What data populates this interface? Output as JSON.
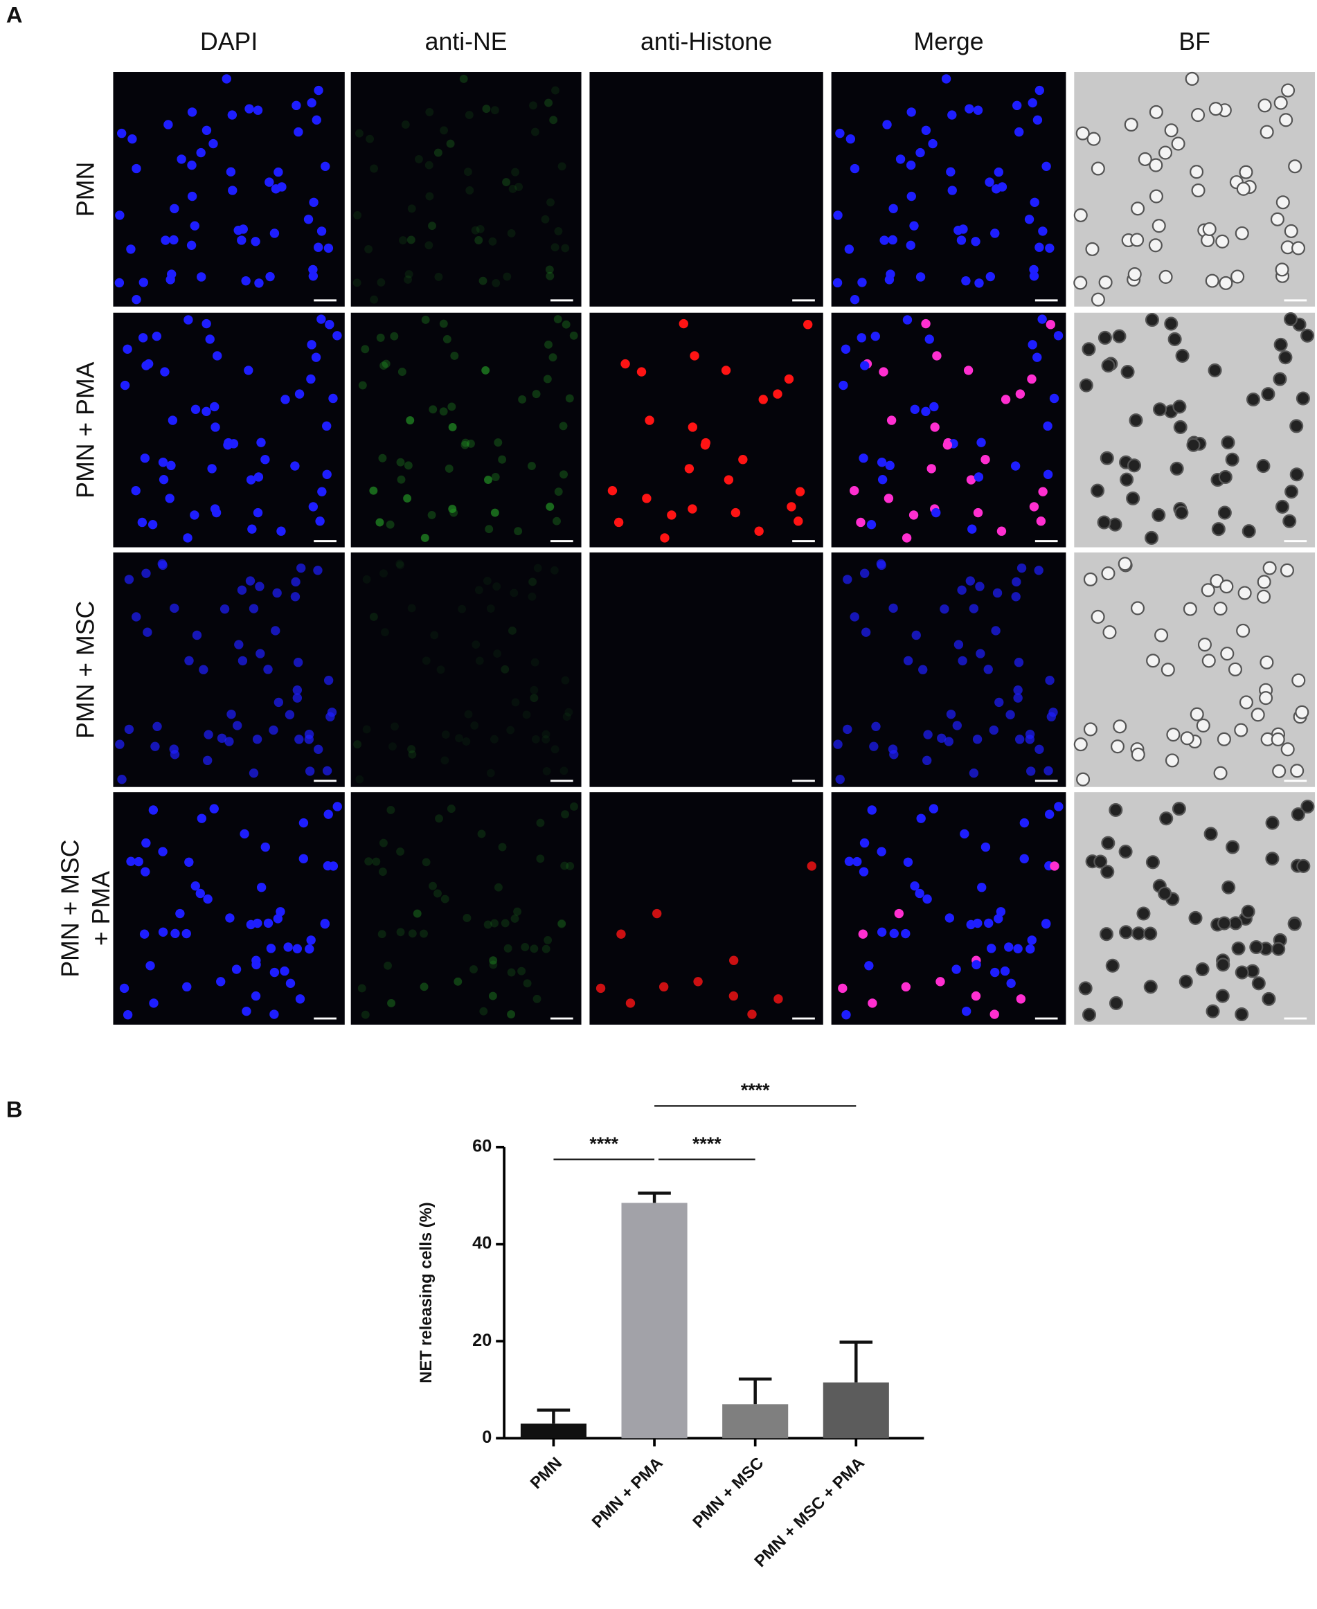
{
  "panel_a": {
    "label": "A",
    "columns": [
      "DAPI",
      "anti-NE",
      "anti-Histone",
      "Merge",
      "BF"
    ],
    "rows": [
      [
        "PMN"
      ],
      [
        "PMN + PMA"
      ],
      [
        "PMN + MSC"
      ],
      [
        "PMN + MSC",
        "+ PMA"
      ]
    ]
  },
  "chart_data": {
    "type": "bar",
    "panel_label": "B",
    "categories": [
      "PMN",
      "PMN + PMA",
      "PMN + MSC",
      "PMN + MSC + PMA"
    ],
    "values": [
      3,
      48.5,
      7,
      11.5
    ],
    "errors": [
      2.8,
      2,
      5.2,
      8.3
    ],
    "colors": [
      "#111111",
      "#a2a2a8",
      "#7f7f7f",
      "#5c5c5c"
    ],
    "ylabel": "NET releasing cells (%)",
    "ylim": [
      0,
      60
    ],
    "yticks": [
      0,
      20,
      40,
      60
    ],
    "annotations": [
      {
        "text": "****",
        "from": 0,
        "to": 1
      },
      {
        "text": "****",
        "from": 1,
        "to": 2
      },
      {
        "text": "****",
        "from": 1,
        "to": 3
      }
    ]
  }
}
